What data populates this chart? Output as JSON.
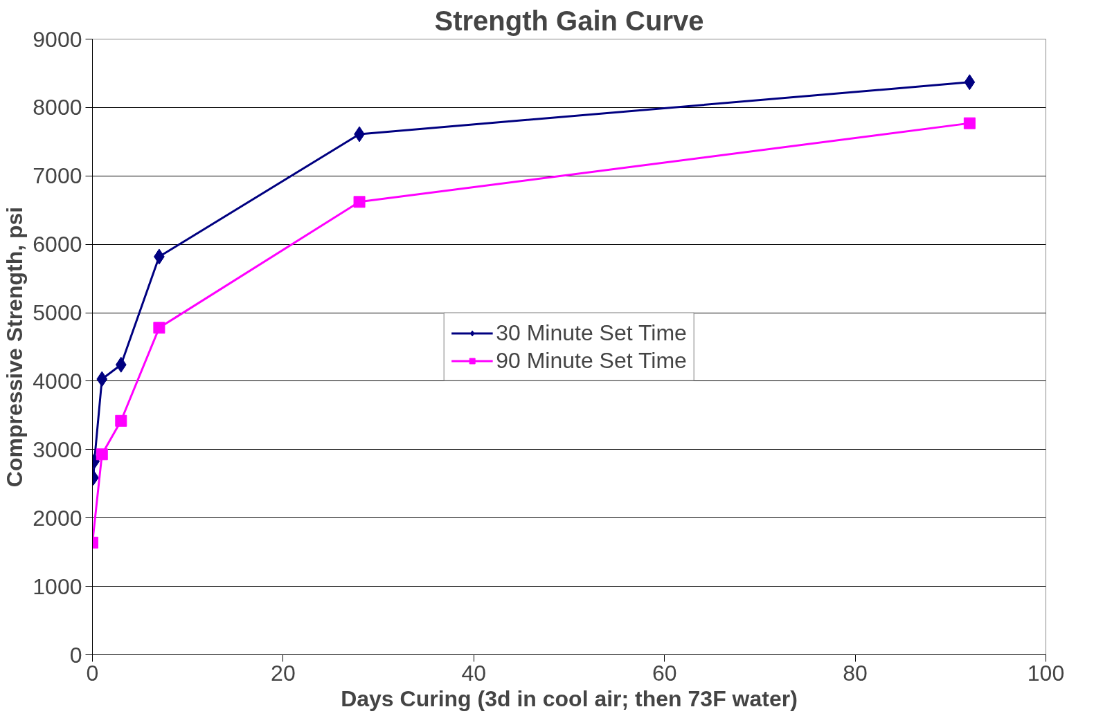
{
  "chart_data": {
    "type": "line",
    "title": "Strength Gain Curve",
    "xlabel": "Days Curing (3d in cool air; then 73F water)",
    "ylabel": "Compressive Strength, psi",
    "xlim": [
      0,
      100
    ],
    "xticks": [
      0,
      20,
      40,
      60,
      80,
      100
    ],
    "ylim": [
      0,
      9000
    ],
    "yticks": [
      0,
      1000,
      2000,
      3000,
      4000,
      5000,
      6000,
      7000,
      8000,
      9000
    ],
    "grid": "y",
    "legend": "center",
    "series": [
      {
        "name": "30 Minute Set Time",
        "color": "#000080",
        "marker": "diamond",
        "x": [
          0.1,
          0.2,
          1,
          3,
          7,
          28,
          92
        ],
        "values": [
          2590,
          2830,
          4030,
          4240,
          5820,
          7610,
          8370
        ]
      },
      {
        "name": "90 Minute Set Time",
        "color": "#ff00ff",
        "marker": "square",
        "x": [
          0,
          1,
          3,
          7,
          28,
          92
        ],
        "values": [
          1640,
          2930,
          3420,
          4780,
          6620,
          7770
        ]
      }
    ]
  }
}
